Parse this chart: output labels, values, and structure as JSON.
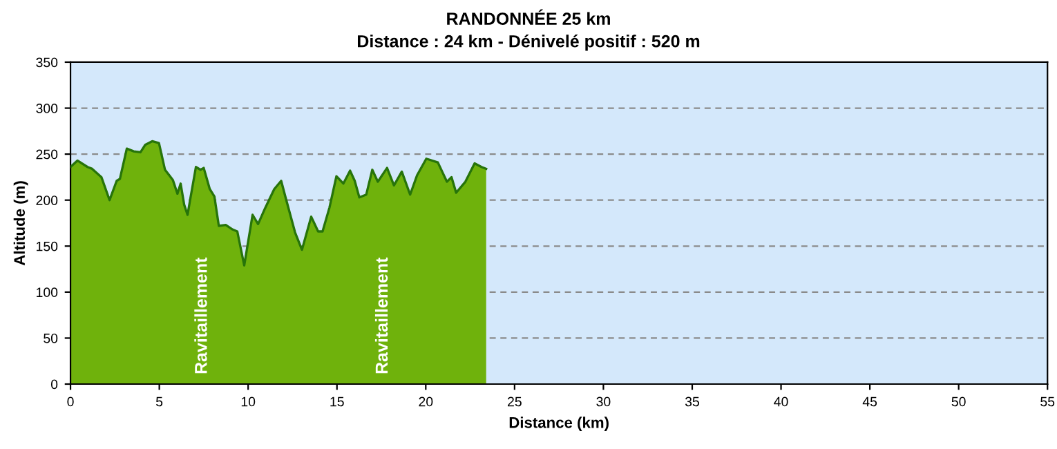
{
  "chart_data": {
    "type": "area",
    "title": "RANDONNÉE 25 km",
    "subtitle": "Distance : 24 km - Dénivelé positif : 520 m",
    "xlabel": "Distance (km)",
    "ylabel": "Altitude (m)",
    "series": [
      {
        "color": "#6fb20c",
        "x": [
          0,
          0.39,
          0.96,
          1.22,
          1.74,
          2.2,
          2.6,
          2.78,
          3.17,
          3.56,
          3.94,
          4.2,
          4.6,
          4.98,
          5.32,
          5.76,
          6.02,
          6.2,
          6.4,
          6.59,
          6.75,
          7.06,
          7.32,
          7.5,
          7.84,
          8.1,
          8.35,
          8.74,
          9.13,
          9.39,
          9.78,
          10.25,
          10.56,
          10.95,
          11.47,
          11.86,
          12.12,
          12.64,
          13.03,
          13.55,
          13.94,
          14.19,
          14.58,
          14.97,
          15.36,
          15.74,
          16.0,
          16.26,
          16.65,
          16.99,
          17.3,
          17.82,
          18.21,
          18.65,
          19.12,
          19.51,
          20.03,
          20.68,
          21.19,
          21.45,
          21.71,
          22.23,
          22.75,
          23.14,
          23.4
        ],
        "values": [
          236,
          243,
          236,
          234,
          225,
          200,
          221,
          223,
          256,
          253,
          252,
          260,
          264,
          262,
          233,
          222,
          207,
          218,
          195,
          184,
          202,
          236,
          233,
          235,
          212,
          204,
          172,
          173,
          168,
          166,
          129,
          184,
          174,
          191,
          212,
          221,
          202,
          165,
          146,
          182,
          166,
          166,
          192,
          226,
          218,
          232,
          221,
          203,
          206,
          233,
          220,
          235,
          216,
          231,
          206,
          227,
          245,
          241,
          220,
          225,
          208,
          220,
          240,
          236,
          234
        ]
      }
    ],
    "xlim": [
      0,
      55
    ],
    "xticks": [
      0,
      5,
      10,
      15,
      20,
      25,
      30,
      35,
      40,
      45,
      50,
      55
    ],
    "ylim": [
      0,
      350
    ],
    "yticks": [
      0,
      50,
      100,
      150,
      200,
      250,
      300,
      350
    ],
    "grid": "y",
    "annotations": [
      "Ravitaillement",
      "Ravitaillement"
    ]
  }
}
